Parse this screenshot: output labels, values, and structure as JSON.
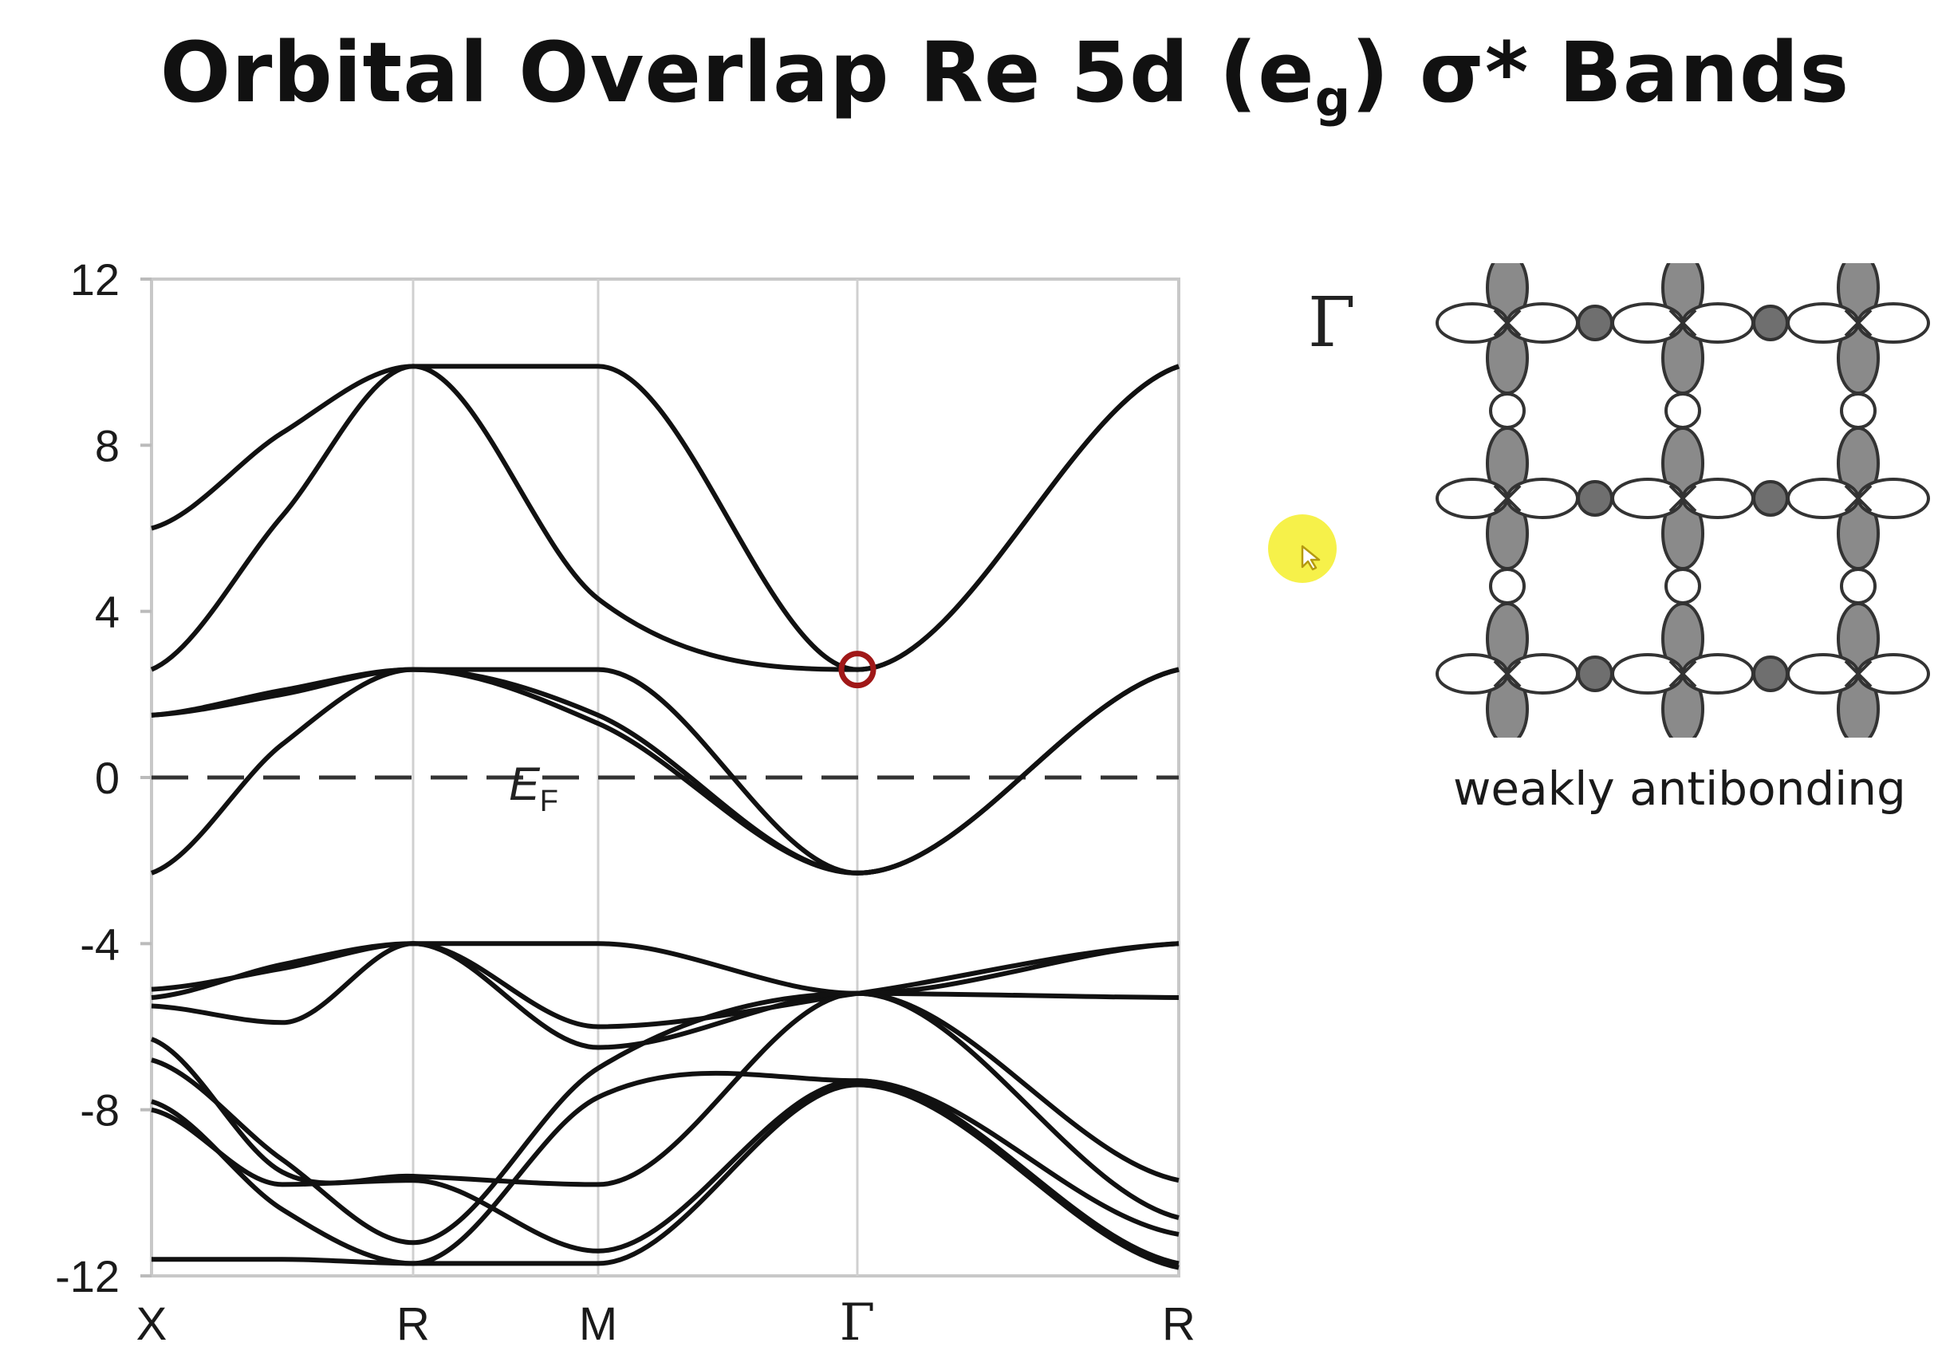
{
  "title": {
    "prefix": "Orbital Overlap Re 5d (e",
    "subscript": "g",
    "suffix": ") σ* Bands"
  },
  "chart_data": {
    "type": "line",
    "title": "",
    "xlabel": "",
    "ylabel": "",
    "ylim": [
      -12,
      12
    ],
    "yticks": [
      12,
      8,
      4,
      0,
      -4,
      -8,
      -12
    ],
    "x_labels": [
      "X",
      "R",
      "M",
      "Γ",
      "R"
    ],
    "x_positions": [
      0,
      1,
      2,
      3,
      4
    ],
    "fermi_level": {
      "y": 0,
      "label": "E",
      "label_sub": "F",
      "style": "dashed"
    },
    "highlight_point": {
      "x": 3,
      "y": 2.6,
      "color": "#a01818"
    },
    "grid": true,
    "series": [
      {
        "points": [
          [
            0,
            6.0
          ],
          [
            0.5,
            8.3
          ],
          [
            1,
            9.9
          ],
          [
            2,
            9.9
          ],
          [
            3,
            2.6
          ],
          [
            4,
            9.9
          ]
        ]
      },
      {
        "points": [
          [
            0,
            2.6
          ],
          [
            0.5,
            6.3
          ],
          [
            1,
            9.9
          ],
          [
            2,
            4.3
          ],
          [
            3,
            2.6
          ],
          [
            4,
            9.9
          ]
        ]
      },
      {
        "points": [
          [
            0,
            1.5
          ],
          [
            0.5,
            2.0
          ],
          [
            1,
            2.6
          ],
          [
            2,
            2.6
          ],
          [
            3,
            -2.3
          ],
          [
            4,
            2.6
          ]
        ]
      },
      {
        "points": [
          [
            0,
            1.5
          ],
          [
            0.5,
            2.1
          ],
          [
            1,
            2.6
          ],
          [
            2,
            1.5
          ],
          [
            3,
            -2.3
          ],
          [
            4,
            2.6
          ]
        ]
      },
      {
        "points": [
          [
            0,
            -2.3
          ],
          [
            0.5,
            0.8
          ],
          [
            1,
            2.6
          ],
          [
            2,
            1.3
          ],
          [
            3,
            -2.3
          ],
          [
            4,
            2.6
          ]
        ]
      },
      {
        "points": [
          [
            0,
            -5.1
          ],
          [
            0.5,
            -4.6
          ],
          [
            1,
            -4.0
          ],
          [
            2,
            -4.0
          ],
          [
            3,
            -5.2
          ],
          [
            4,
            -4.0
          ]
        ]
      },
      {
        "points": [
          [
            0,
            -5.3
          ],
          [
            0.5,
            -4.5
          ],
          [
            1,
            -4.0
          ],
          [
            2,
            -6.0
          ],
          [
            3,
            -5.2
          ],
          [
            4,
            -4.0
          ]
        ]
      },
      {
        "points": [
          [
            0,
            -5.5
          ],
          [
            0.5,
            -5.9
          ],
          [
            1,
            -4.0
          ],
          [
            2,
            -6.5
          ],
          [
            3,
            -5.2
          ],
          [
            4,
            -5.3
          ]
        ]
      },
      {
        "points": [
          [
            0,
            -6.3
          ],
          [
            0.5,
            -9.5
          ],
          [
            1,
            -9.6
          ],
          [
            2,
            -9.8
          ],
          [
            3,
            -5.2
          ],
          [
            4,
            -9.7
          ]
        ]
      },
      {
        "points": [
          [
            0,
            -6.8
          ],
          [
            0.5,
            -9.2
          ],
          [
            1,
            -11.2
          ],
          [
            2,
            -7.0
          ],
          [
            3,
            -5.2
          ],
          [
            4,
            -10.6
          ]
        ]
      },
      {
        "points": [
          [
            0,
            -7.8
          ],
          [
            0.5,
            -10.4
          ],
          [
            1,
            -11.7
          ],
          [
            2,
            -7.7
          ],
          [
            3,
            -7.3
          ],
          [
            4,
            -11.7
          ]
        ]
      },
      {
        "points": [
          [
            0,
            -8.0
          ],
          [
            0.5,
            -9.8
          ],
          [
            1,
            -9.7
          ],
          [
            2,
            -11.4
          ],
          [
            3,
            -7.3
          ],
          [
            4,
            -11.0
          ]
        ]
      },
      {
        "points": [
          [
            0,
            -11.6
          ],
          [
            0.5,
            -11.6
          ],
          [
            1,
            -11.7
          ],
          [
            2,
            -11.7
          ],
          [
            3,
            -7.4
          ],
          [
            4,
            -11.8
          ]
        ]
      }
    ]
  },
  "diagram": {
    "gamma_label": "Γ",
    "caption": "weakly antibonding"
  },
  "colors": {
    "band_line": "#111111",
    "fermi_line": "#333333",
    "highlight": "#a01818",
    "lobe_fill": "#8a8a8a",
    "pointer": "#f5ee2a"
  }
}
